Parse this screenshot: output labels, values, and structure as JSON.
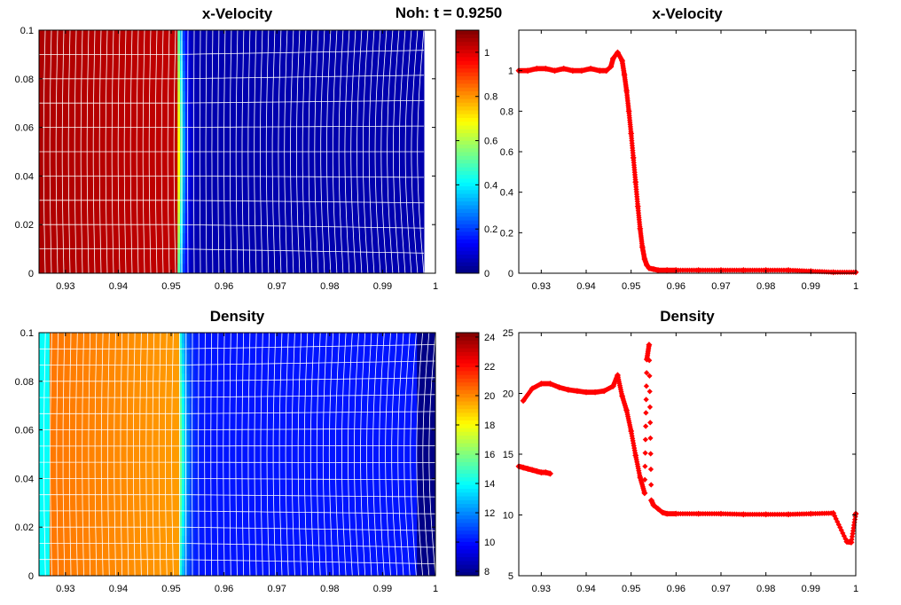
{
  "figure": {
    "suptitle": "Noh: t = 0.9250"
  },
  "chart_data": [
    {
      "id": "velocity-field",
      "type": "heatmap",
      "title": "x-Velocity",
      "xlim": [
        0.925,
        1.0
      ],
      "ylim": [
        0,
        0.1
      ],
      "xticks": [
        "0.93",
        "0.94",
        "0.95",
        "0.96",
        "0.97",
        "0.98",
        "0.99",
        "1"
      ],
      "xtick_values": [
        0.93,
        0.94,
        0.95,
        0.96,
        0.97,
        0.98,
        0.99,
        1.0
      ],
      "yticks": [
        "0",
        "0.02",
        "0.04",
        "0.06",
        "0.08",
        "0.1"
      ],
      "ytick_values": [
        0,
        0.02,
        0.04,
        0.06,
        0.08,
        0.1
      ],
      "clim": [
        0,
        1.1
      ],
      "colorbar_ticks": [
        "0",
        "0.2",
        "0.4",
        "0.6",
        "0.8",
        "1"
      ],
      "colorbar_values": [
        0,
        0.2,
        0.4,
        0.6,
        0.8,
        1.0
      ],
      "colormap": "jet",
      "field": {
        "left_value": 1.05,
        "right_value": 0.05,
        "shock_x": 0.9513,
        "shock_width": 0.0015,
        "shock_curvature": 0.0005,
        "data_extent_x": [
          0.925,
          0.9978
        ]
      },
      "mesh": {
        "color": "#ffffff",
        "columns": 62,
        "rows": 10
      }
    },
    {
      "id": "density-field",
      "type": "heatmap",
      "title": "Density",
      "xlim": [
        0.925,
        1.0
      ],
      "ylim": [
        0,
        0.1
      ],
      "xticks": [
        "0.93",
        "0.94",
        "0.95",
        "0.96",
        "0.97",
        "0.98",
        "0.99",
        "1"
      ],
      "xtick_values": [
        0.93,
        0.94,
        0.95,
        0.96,
        0.97,
        0.98,
        0.99,
        1.0
      ],
      "yticks": [
        "0",
        "0.02",
        "0.04",
        "0.06",
        "0.08",
        "0.1"
      ],
      "ytick_values": [
        0,
        0.02,
        0.04,
        0.06,
        0.08,
        0.1
      ],
      "clim": [
        7.7,
        24.3
      ],
      "colorbar_ticks": [
        "8",
        "10",
        "12",
        "14",
        "16",
        "18",
        "20",
        "22",
        "24"
      ],
      "colorbar_values": [
        8,
        10,
        12,
        14,
        16,
        18,
        20,
        22,
        24
      ],
      "colormap": "jet",
      "field": {
        "edge_value": 14.0,
        "edge_x": 0.9268,
        "left_value": 20.3,
        "right_value": 10.1,
        "far_right_value": 7.8,
        "far_right_x": 0.9964,
        "shock_x": 0.9515,
        "shock_width": 0.0018,
        "shock_curvature": 0.0005,
        "data_extent_x": [
          0.925,
          1.0
        ]
      },
      "mesh": {
        "color": "#ffffff",
        "columns": 62,
        "rows": 15
      }
    },
    {
      "id": "velocity-scatter",
      "type": "scatter",
      "title": "x-Velocity",
      "xlim": [
        0.925,
        1.0
      ],
      "ylim": [
        0,
        1.2
      ],
      "xticks": [
        "0.93",
        "0.94",
        "0.95",
        "0.96",
        "0.97",
        "0.98",
        "0.99",
        "1"
      ],
      "xtick_values": [
        0.93,
        0.94,
        0.95,
        0.96,
        0.97,
        0.98,
        0.99,
        1.0
      ],
      "yticks": [
        "0",
        "0.2",
        "0.4",
        "0.6",
        "0.8",
        "1"
      ],
      "ytick_values": [
        0,
        0.2,
        0.4,
        0.6,
        0.8,
        1.0
      ],
      "marker_color": "#ff0000",
      "x": [
        0.925,
        0.927,
        0.929,
        0.931,
        0.933,
        0.935,
        0.937,
        0.939,
        0.941,
        0.943,
        0.9445,
        0.9455,
        0.946,
        0.947,
        0.948,
        0.9485,
        0.949,
        0.9495,
        0.95,
        0.9505,
        0.951,
        0.9515,
        0.952,
        0.9525,
        0.953,
        0.9535,
        0.954,
        0.955,
        0.956,
        0.958,
        0.96,
        0.965,
        0.97,
        0.975,
        0.98,
        0.985,
        0.99,
        0.995,
        1.0
      ],
      "y": [
        1.0,
        1.0,
        1.01,
        1.01,
        1.0,
        1.01,
        1.0,
        1.0,
        1.01,
        1.0,
        1.0,
        1.02,
        1.06,
        1.09,
        1.05,
        0.98,
        0.9,
        0.8,
        0.69,
        0.57,
        0.45,
        0.33,
        0.22,
        0.13,
        0.07,
        0.04,
        0.025,
        0.02,
        0.015,
        0.015,
        0.015,
        0.015,
        0.015,
        0.015,
        0.015,
        0.015,
        0.01,
        0.005,
        0.005
      ]
    },
    {
      "id": "density-scatter",
      "type": "scatter",
      "title": "Density",
      "xlim": [
        0.925,
        1.0
      ],
      "ylim": [
        5,
        25
      ],
      "xticks": [
        "0.93",
        "0.94",
        "0.95",
        "0.96",
        "0.97",
        "0.98",
        "0.99",
        "1"
      ],
      "xtick_values": [
        0.93,
        0.94,
        0.95,
        0.96,
        0.97,
        0.98,
        0.99,
        1.0
      ],
      "yticks": [
        "5",
        "10",
        "15",
        "20",
        "25"
      ],
      "ytick_values": [
        5,
        10,
        15,
        20,
        25
      ],
      "marker_color": "#ff0000",
      "x": [
        0.925,
        0.926,
        0.927,
        0.928,
        0.929,
        0.93,
        0.931,
        0.932,
        0.926,
        0.928,
        0.93,
        0.932,
        0.934,
        0.936,
        0.938,
        0.94,
        0.942,
        0.944,
        0.946,
        0.947,
        0.948,
        0.949,
        0.95,
        0.951,
        0.952,
        0.953,
        0.9535,
        0.954,
        0.9545,
        0.955,
        0.956,
        0.957,
        0.958,
        0.96,
        0.965,
        0.97,
        0.975,
        0.98,
        0.985,
        0.99,
        0.995,
        0.998,
        0.999,
        1.0
      ],
      "y": [
        14.0,
        13.9,
        13.8,
        13.7,
        13.6,
        13.5,
        13.5,
        13.4,
        19.4,
        20.4,
        20.8,
        20.8,
        20.5,
        20.3,
        20.2,
        20.1,
        20.1,
        20.2,
        20.6,
        21.5,
        19.8,
        18.6,
        16.9,
        14.9,
        13.1,
        11.8,
        22.8,
        24.0,
        11.2,
        10.8,
        10.5,
        10.2,
        10.1,
        10.1,
        10.1,
        10.1,
        10.05,
        10.05,
        10.05,
        10.1,
        10.15,
        7.8,
        7.75,
        10.1
      ]
    }
  ]
}
